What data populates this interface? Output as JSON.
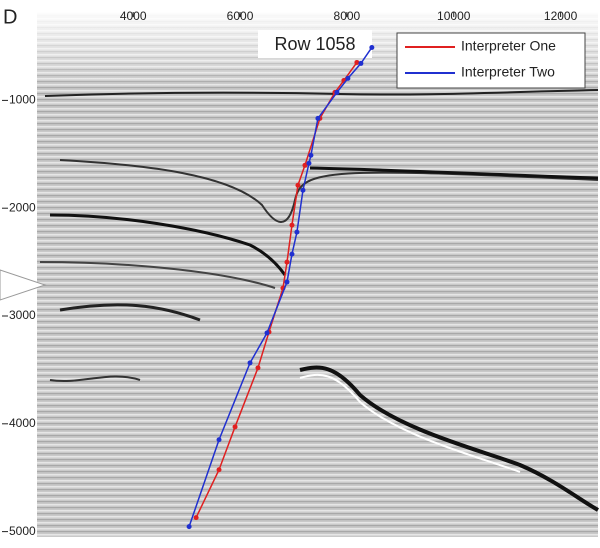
{
  "chart_data": {
    "type": "line",
    "panel_label": "D",
    "annotation": "Row 1058",
    "xlim": [
      2200,
      12700
    ],
    "xticks": [
      4000,
      6000,
      8000,
      10000,
      12000
    ],
    "ylim": [
      180,
      5050
    ],
    "yticks": [
      1000,
      2000,
      3000,
      4000,
      5000
    ],
    "y_reversed": true,
    "legend": "upper right",
    "series": [
      {
        "name": "Interpreter One",
        "color": "#e02020",
        "x": [
          8187,
          7944,
          7776,
          7495,
          7215,
          7084,
          6972,
          6879,
          6804,
          6542,
          6336,
          5907,
          5607,
          5178
        ],
        "values": [
          648,
          815,
          926,
          1167,
          1602,
          1787,
          2157,
          2500,
          2741,
          3148,
          3481,
          4028,
          4426,
          4870
        ]
      },
      {
        "name": "Interpreter Two",
        "color": "#2030d0",
        "x": [
          8467,
          8262,
          8019,
          7813,
          7458,
          7327,
          7290,
          7178,
          7065,
          6972,
          6879,
          6505,
          6187,
          5607,
          5047
        ],
        "values": [
          509,
          657,
          796,
          926,
          1167,
          1509,
          1583,
          1833,
          2222,
          2426,
          2685,
          3157,
          3435,
          4148,
          4954
        ]
      }
    ]
  }
}
